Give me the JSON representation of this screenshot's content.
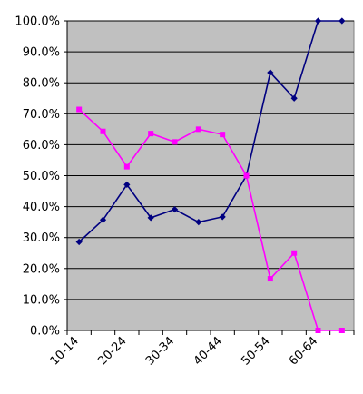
{
  "chart_data": {
    "type": "line",
    "title": "",
    "xlabel": "",
    "ylabel": "",
    "categories": [
      "10-14",
      "15-19",
      "20-24",
      "25-29",
      "30-34",
      "35-39",
      "40-44",
      "45-49",
      "50-54",
      "55-59",
      "60-64",
      "65-69"
    ],
    "x_tick_labels": [
      "10-14",
      "20-24",
      "30-34",
      "40-44",
      "50-54",
      "60-64"
    ],
    "y_tick_labels": [
      "0.0%",
      "10.0%",
      "20.0%",
      "30.0%",
      "40.0%",
      "50.0%",
      "60.0%",
      "70.0%",
      "80.0%",
      "90.0%",
      "100.0%"
    ],
    "ylim": [
      0,
      100
    ],
    "y_step": 10,
    "y_unit": "%",
    "grid": "horizontal",
    "legend": "none",
    "plot_background": "#c0c0c0",
    "series": [
      {
        "color": "#000080",
        "marker": "diamond",
        "values": [
          28.6,
          35.7,
          47.1,
          36.4,
          39.1,
          35.0,
          36.7,
          50.0,
          83.3,
          75.0,
          100.0,
          100.0
        ]
      },
      {
        "color": "#ff00ff",
        "marker": "square",
        "values": [
          71.4,
          64.3,
          52.9,
          63.6,
          60.9,
          65.0,
          63.3,
          50.0,
          16.7,
          25.0,
          0.0,
          0.0
        ]
      }
    ]
  }
}
